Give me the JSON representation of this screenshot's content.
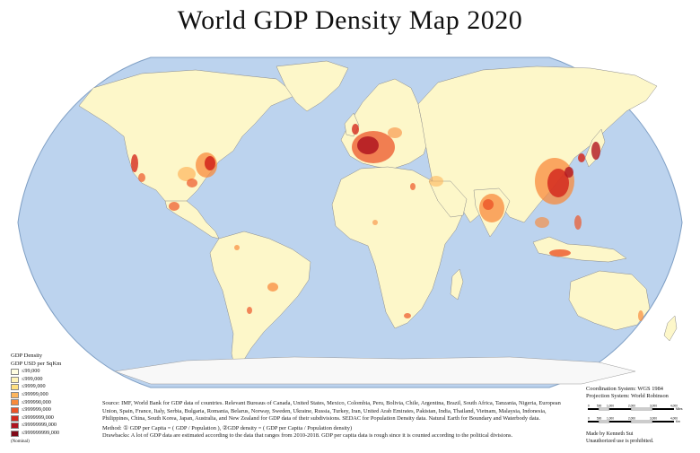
{
  "title": "World GDP Density Map 2020",
  "legend": {
    "title": "GDP Density",
    "subtitle": "GDP USD per SqKm",
    "items": [
      {
        "label": "≤99,000",
        "color": "#fffde0"
      },
      {
        "label": "≤999,000",
        "color": "#fff4b8"
      },
      {
        "label": "≤9999,000",
        "color": "#ffe080"
      },
      {
        "label": "≤99999,000",
        "color": "#fdb55c"
      },
      {
        "label": "≤999990,000",
        "color": "#f88b3c"
      },
      {
        "label": "≤999999,000",
        "color": "#ec5528"
      },
      {
        "label": "≤9999999,000",
        "color": "#d42a1e"
      },
      {
        "label": "≤99999999,000",
        "color": "#b01520"
      },
      {
        "label": "≤999999999,000",
        "color": "#800a18"
      }
    ],
    "note": "(Nominal)"
  },
  "source": {
    "text": "Source: IMF, World Bank for GDP data of countries. Relevant Bureaus of Canada, United States, Mexico, Colombia, Peru, Bolivia, Chile, Argentina, Brazil, South Africa, Tanzania, Nigeria, European Union, Spain, France, Italy, Serbia, Bulgaria, Romania, Belarus, Norway, Sweden, Ukraine, Russia, Turkey, Iran, United Arab Emirates, Pakistan, India, Thailand, Vietnam, Malaysia, Indonesia, Philippines, China, South Korea, Japan, Australia, and New Zealand for GDP data of their subdivisions. SEDAC for Population Density data. Natural Earth for Boundary and Waterbody data.",
    "method": "Method: ① GDP per Capita = ( GDP / Population ),  ②GDP density = ( GDP per Capita / Population density)",
    "drawbacks": "Drawbacks: A lot of GDP data are estimated according to the data that ranges from 2010-2018. GDP per capita data is rough since it is counted according to the political divisions."
  },
  "coordination": {
    "system": "Coordination System: WGS 1984",
    "projection": "Projection System: World Robinson"
  },
  "scalebars": {
    "top_ticks": [
      "0",
      "500",
      "1,000",
      "2,000",
      "3,000",
      "4,000"
    ],
    "top_unit": "Miles",
    "bottom_ticks": [
      "0",
      "500",
      "1,000",
      "2,000",
      "3,000",
      "4,000"
    ],
    "bottom_unit": "Km"
  },
  "credit": {
    "author": "Made by Kenneth Sui",
    "notice": "Unauthorized use is prohibited."
  },
  "colors": {
    "ocean": "#bcd3ee",
    "land": "#fdf7c9",
    "antarctica": "#f8f8f8",
    "coast": "#8a8a8a"
  }
}
